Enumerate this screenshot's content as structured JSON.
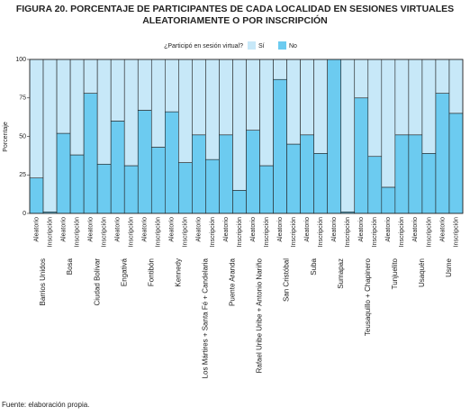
{
  "chart_data": {
    "type": "stacked_bar",
    "title": "FIGURA 20. PORCENTAJE DE PARTICIPANTES DE CADA LOCALIDAD EN SESIONES VIRTUALES ALEATORIAMENTE O POR INSCRIPCIÓN",
    "ylabel": "Porcentaje",
    "legend_title": "¿Participó en sesión virtual?",
    "categories": [
      "Aleatorio",
      "Inscripción",
      "Aleatorio",
      "Inscripción",
      "Aleatorio",
      "Inscripción",
      "Aleatorio",
      "Inscripción",
      "Aleatorio",
      "Inscripción",
      "Aleatorio",
      "Inscripción",
      "Aleatorio",
      "Inscripción",
      "Aleatorio",
      "Inscripción",
      "Aleatorio",
      "Inscripción",
      "Aleatorio",
      "Inscripción",
      "Aleatorio",
      "Inscripción",
      "Aleatorio",
      "Inscripción",
      "Aleatorio",
      "Inscripción",
      "Aleatorio",
      "Inscripción",
      "Aleatorio",
      "Inscripción",
      "Aleatorio",
      "Inscripción"
    ],
    "groups": [
      "Barrios Unidos",
      "Bosa",
      "Ciudad Bolívar",
      "Engativá",
      "Fontibón",
      "Kennedy",
      "Los Mártires + Santa Fé + Candelaria",
      "Puente Aranda",
      "Rafael Uribe Uribe + Antonio Nariño",
      "San Cristóbal",
      "Suba",
      "Sumapaz",
      "Teusaquillo + Chapinero",
      "Tunjuelito",
      "Usaquén",
      "Usme"
    ],
    "series": [
      {
        "name": "No",
        "color": "#6ccbf0",
        "values": [
          23,
          1,
          52,
          38,
          78,
          32,
          60,
          31,
          67,
          43,
          66,
          33,
          51,
          35,
          51,
          15,
          54,
          31,
          87,
          45,
          51,
          39,
          100,
          1,
          75,
          37,
          17,
          51,
          51,
          39,
          78,
          65
        ]
      },
      {
        "name": "Sí",
        "color": "#c7e8f8",
        "values": [
          77,
          99,
          48,
          62,
          22,
          68,
          40,
          69,
          33,
          57,
          34,
          67,
          49,
          65,
          49,
          85,
          46,
          69,
          13,
          55,
          49,
          61,
          0,
          99,
          25,
          63,
          83,
          49,
          49,
          61,
          22,
          35
        ]
      }
    ],
    "ylim": [
      0,
      100
    ],
    "yticks": [
      0,
      25,
      50,
      75,
      100
    ],
    "footnote": "Fuente: elaboración propia."
  }
}
